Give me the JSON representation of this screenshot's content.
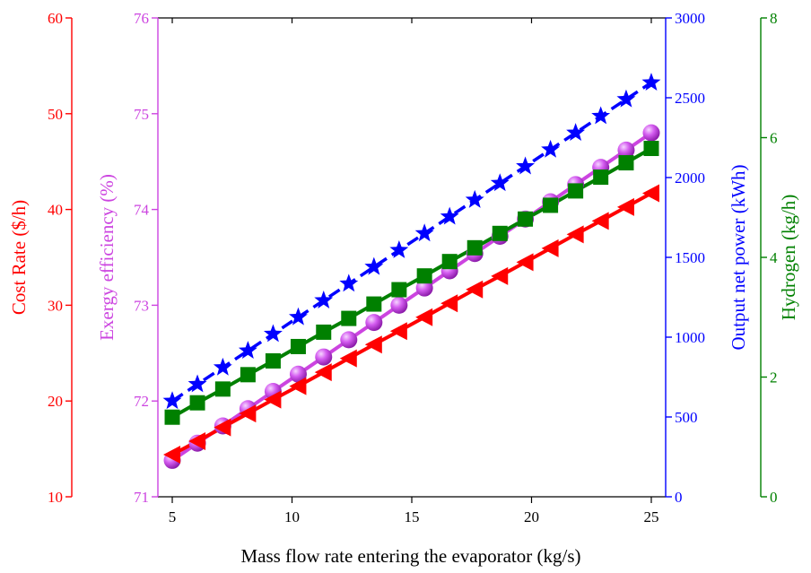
{
  "chart_data": {
    "type": "line",
    "title": "",
    "xlabel": "Mass flow rate entering the evaporator (kg/s)",
    "x": [
      5,
      6.05,
      7.11,
      8.16,
      9.21,
      10.26,
      11.32,
      12.37,
      13.42,
      14.47,
      15.53,
      16.58,
      17.63,
      18.68,
      19.74,
      20.79,
      21.84,
      22.89,
      23.95,
      25
    ],
    "xlim": [
      4.4,
      25.6
    ],
    "xticks": [
      5,
      10,
      15,
      20,
      25
    ],
    "axes": {
      "cost": {
        "label": "Cost Rate ($/h)",
        "range": [
          10,
          60
        ],
        "ticks": [
          10,
          20,
          30,
          40,
          50,
          60
        ],
        "color": "#ff0000"
      },
      "exergy": {
        "label": "Exergy efficiency  (%)",
        "range": [
          71,
          76
        ],
        "ticks": [
          71,
          72,
          73,
          74,
          75,
          76
        ],
        "color": "#cc44e0"
      },
      "power": {
        "label": "Output net power (kWh)",
        "range": [
          0,
          3000
        ],
        "ticks": [
          0,
          500,
          1000,
          1500,
          2000,
          2500,
          3000
        ],
        "color": "#0000ff"
      },
      "hydrogen": {
        "label": "Hydrogen (kg/h)",
        "range": [
          0,
          8
        ],
        "ticks": [
          0,
          2,
          4,
          6,
          8
        ],
        "color": "#008000"
      }
    },
    "series": [
      {
        "axis": "cost",
        "color": "#ff0000",
        "marker": "triangle-left",
        "values": [
          14.4,
          15.8,
          17.25,
          18.7,
          20.15,
          21.55,
          23.0,
          24.45,
          25.9,
          27.3,
          28.75,
          30.2,
          31.65,
          33.05,
          34.5,
          35.95,
          37.4,
          38.8,
          40.25,
          41.7
        ]
      },
      {
        "axis": "exergy",
        "color": "#cc44e0",
        "marker": "sphere",
        "values": [
          71.38,
          71.56,
          71.74,
          71.92,
          72.1,
          72.28,
          72.46,
          72.64,
          72.82,
          73.0,
          73.18,
          73.36,
          73.54,
          73.72,
          73.9,
          74.08,
          74.26,
          74.44,
          74.62,
          74.8
        ]
      },
      {
        "axis": "power",
        "color": "#0000ff",
        "marker": "star",
        "values": [
          600,
          705,
          810,
          915,
          1020,
          1125,
          1230,
          1335,
          1440,
          1545,
          1650,
          1755,
          1860,
          1965,
          2070,
          2175,
          2280,
          2385,
          2490,
          2595
        ]
      },
      {
        "axis": "hydrogen",
        "color": "#008000",
        "marker": "square",
        "values": [
          1.33,
          1.57,
          1.8,
          2.04,
          2.27,
          2.51,
          2.75,
          2.98,
          3.22,
          3.46,
          3.69,
          3.93,
          4.16,
          4.4,
          4.64,
          4.87,
          5.11,
          5.34,
          5.58,
          5.82
        ]
      }
    ]
  }
}
